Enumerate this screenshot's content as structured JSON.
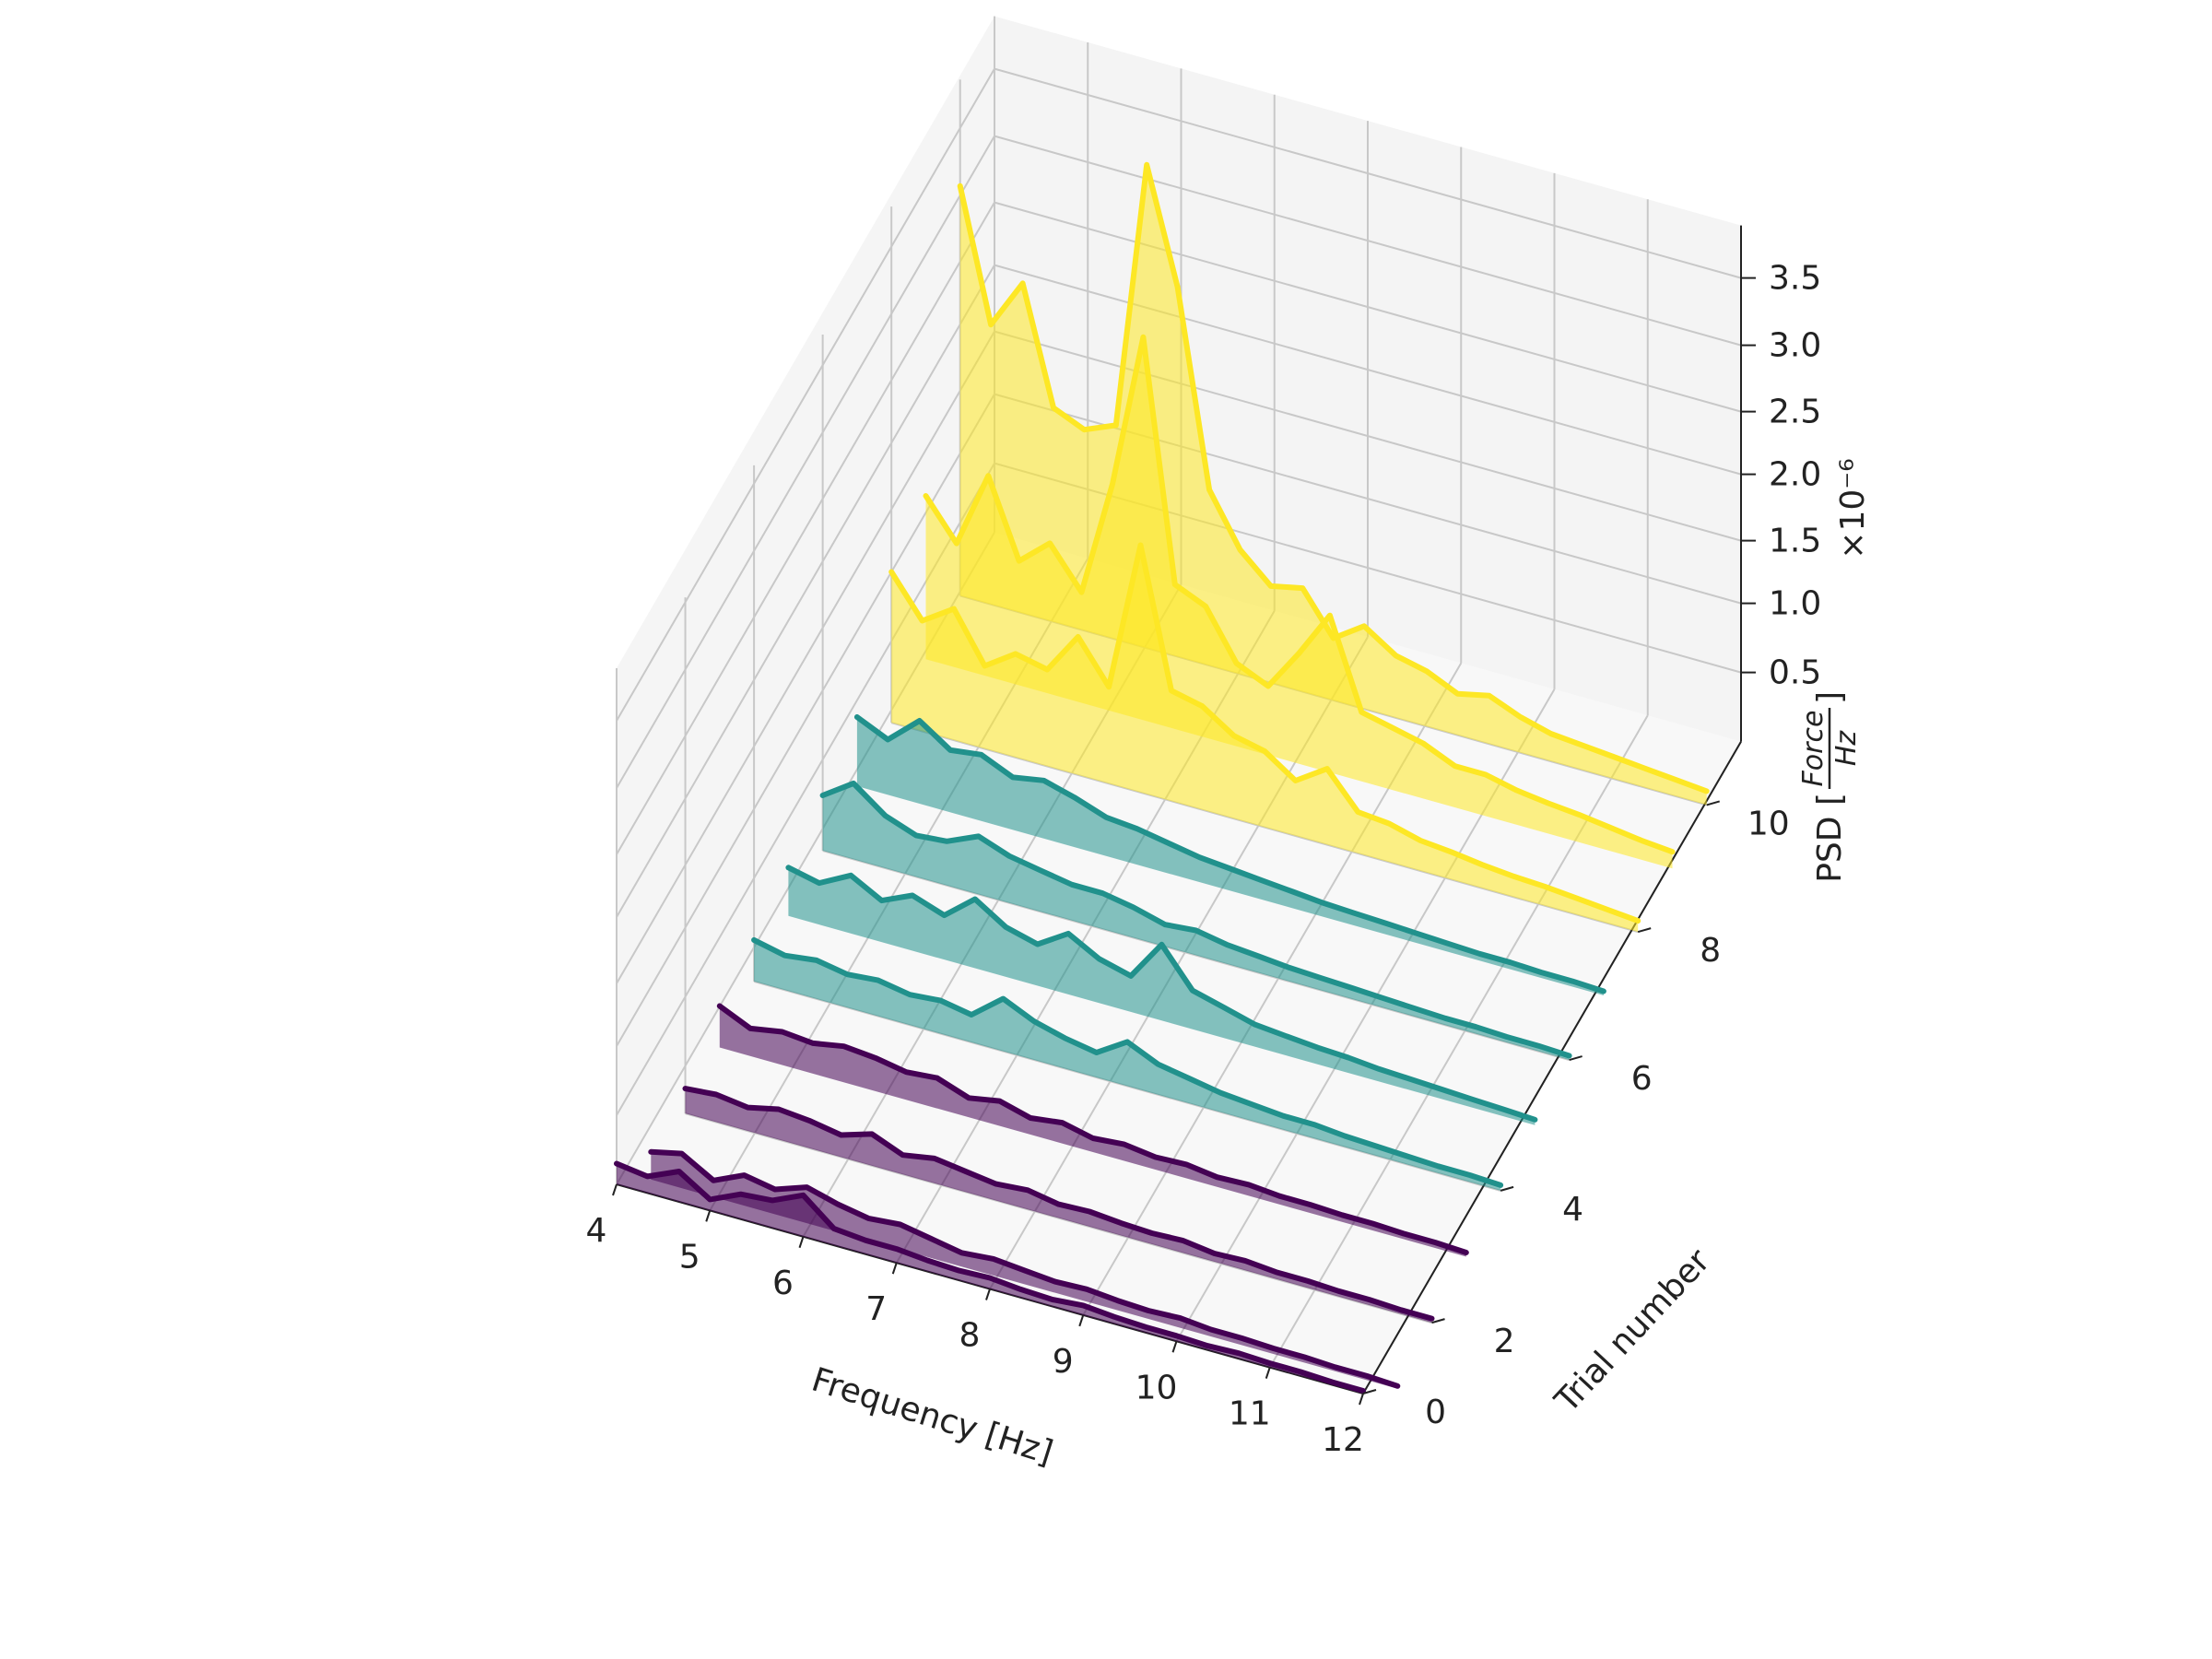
{
  "chart_data": {
    "type": "line",
    "projection": "3d",
    "fill_under": true,
    "xlabel": "Frequency [Hz]",
    "ylabel": "Trial number",
    "zlabel": {
      "prefix": "PSD [",
      "num": "Force",
      "den": "Hz",
      "suffix": "]"
    },
    "offset_text": "×10⁻⁶",
    "xlim": [
      4,
      12
    ],
    "ylim": [
      0,
      11
    ],
    "zlim": [
      0,
      3.9
    ],
    "x_ticks": [
      4,
      5,
      6,
      7,
      8,
      9,
      10,
      11,
      12
    ],
    "y_ticks": [
      0,
      2,
      4,
      6,
      8,
      10
    ],
    "z_ticks": [
      "0.5",
      "1.0",
      "1.5",
      "2.0",
      "2.5",
      "3.0",
      "3.5"
    ],
    "colors": {
      "group_low": "#440154",
      "group_mid": "#21918c",
      "group_high": "#fde725"
    },
    "x": [
      4.0,
      4.33,
      4.67,
      5.0,
      5.33,
      5.67,
      6.0,
      6.33,
      6.67,
      7.0,
      7.33,
      7.67,
      8.0,
      8.33,
      8.67,
      9.0,
      9.33,
      9.67,
      10.0,
      10.33,
      10.67,
      11.0,
      11.33,
      11.67,
      12.0
    ],
    "series": [
      {
        "trial": 0,
        "group": "group_low",
        "values": [
          0.15,
          0.12,
          0.22,
          0.08,
          0.18,
          0.2,
          0.3,
          0.12,
          0.1,
          0.1,
          0.08,
          0.07,
          0.08,
          0.06,
          0.05,
          0.07,
          0.05,
          0.04,
          0.04,
          0.03,
          0.04,
          0.03,
          0.03,
          0.02,
          0.02
        ]
      },
      {
        "trial": 1,
        "group": "group_low",
        "values": [
          0.2,
          0.25,
          0.12,
          0.22,
          0.18,
          0.26,
          0.2,
          0.16,
          0.18,
          0.14,
          0.1,
          0.12,
          0.1,
          0.08,
          0.09,
          0.07,
          0.06,
          0.07,
          0.05,
          0.05,
          0.04,
          0.04,
          0.03,
          0.03,
          0.02
        ]
      },
      {
        "trial": 2,
        "group": "group_low",
        "values": [
          0.18,
          0.2,
          0.17,
          0.22,
          0.2,
          0.16,
          0.23,
          0.14,
          0.18,
          0.15,
          0.12,
          0.14,
          0.1,
          0.11,
          0.09,
          0.08,
          0.09,
          0.06,
          0.07,
          0.05,
          0.05,
          0.04,
          0.04,
          0.03,
          0.03
        ]
      },
      {
        "trial": 3,
        "group": "group_low",
        "values": [
          0.3,
          0.2,
          0.24,
          0.22,
          0.26,
          0.24,
          0.2,
          0.22,
          0.14,
          0.18,
          0.12,
          0.15,
          0.1,
          0.12,
          0.09,
          0.1,
          0.07,
          0.08,
          0.06,
          0.06,
          0.05,
          0.05,
          0.04,
          0.04,
          0.03
        ]
      },
      {
        "trial": 4,
        "group": "group_mid",
        "values": [
          0.3,
          0.25,
          0.28,
          0.24,
          0.26,
          0.22,
          0.24,
          0.2,
          0.38,
          0.28,
          0.22,
          0.18,
          0.32,
          0.22,
          0.18,
          0.14,
          0.12,
          0.1,
          0.1,
          0.08,
          0.07,
          0.06,
          0.05,
          0.05,
          0.04
        ]
      },
      {
        "trial": 5,
        "group": "group_mid",
        "values": [
          0.35,
          0.3,
          0.42,
          0.3,
          0.4,
          0.32,
          0.5,
          0.36,
          0.3,
          0.44,
          0.32,
          0.26,
          0.55,
          0.28,
          0.22,
          0.16,
          0.14,
          0.12,
          0.11,
          0.09,
          0.08,
          0.07,
          0.06,
          0.05,
          0.04
        ]
      },
      {
        "trial": 6,
        "group": "group_mid",
        "values": [
          0.4,
          0.55,
          0.38,
          0.3,
          0.32,
          0.42,
          0.34,
          0.3,
          0.26,
          0.26,
          0.22,
          0.16,
          0.18,
          0.14,
          0.12,
          0.1,
          0.09,
          0.08,
          0.07,
          0.06,
          0.05,
          0.05,
          0.04,
          0.04,
          0.03
        ]
      },
      {
        "trial": 7,
        "group": "group_mid",
        "values": [
          0.5,
          0.4,
          0.6,
          0.45,
          0.48,
          0.38,
          0.42,
          0.36,
          0.28,
          0.26,
          0.22,
          0.18,
          0.16,
          0.14,
          0.12,
          0.1,
          0.09,
          0.08,
          0.07,
          0.06,
          0.05,
          0.05,
          0.04,
          0.04,
          0.03
        ]
      },
      {
        "trial": 8,
        "group": "group_high",
        "values": [
          1.1,
          0.8,
          0.95,
          0.6,
          0.75,
          0.7,
          1.0,
          0.7,
          1.85,
          0.8,
          0.75,
          0.6,
          0.55,
          0.4,
          0.55,
          0.3,
          0.28,
          0.22,
          0.2,
          0.17,
          0.15,
          0.14,
          0.12,
          0.1,
          0.08
        ]
      },
      {
        "trial": 9,
        "group": "group_high",
        "values": [
          1.2,
          0.9,
          1.5,
          0.9,
          1.1,
          0.8,
          1.7,
          2.9,
          1.05,
          0.95,
          0.6,
          0.5,
          0.8,
          1.15,
          0.5,
          0.45,
          0.4,
          0.3,
          0.3,
          0.25,
          0.22,
          0.2,
          0.17,
          0.14,
          0.12
        ]
      },
      {
        "trial": 10,
        "group": "group_high",
        "values": [
          3.1,
          2.1,
          2.5,
          1.6,
          1.5,
          1.6,
          3.65,
          2.8,
          1.3,
          0.9,
          0.7,
          0.75,
          0.45,
          0.6,
          0.45,
          0.4,
          0.3,
          0.35,
          0.26,
          0.2,
          0.18,
          0.16,
          0.14,
          0.12,
          0.1
        ]
      }
    ]
  }
}
